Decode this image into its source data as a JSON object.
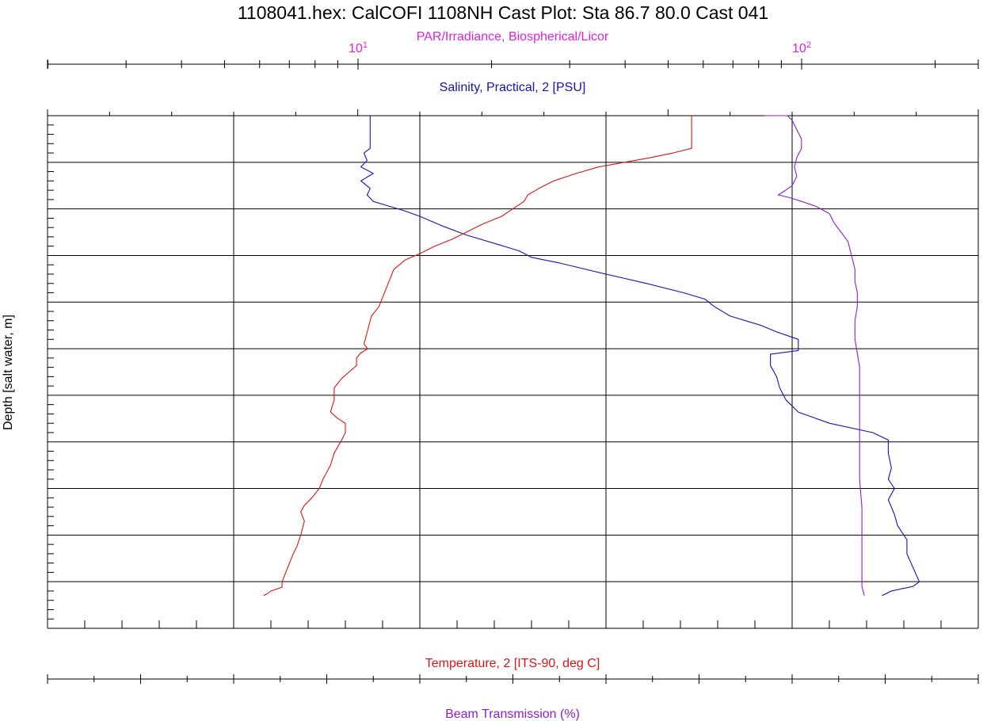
{
  "chart_data": {
    "type": "line",
    "title": "1108041.hex: CalCOFI 1108NH Cast Plot: Sta 86.7 80.0  Cast 041",
    "ylabel": "Depth [salt water, m]",
    "ylim": [
      0,
      550
    ],
    "y_ticks": [
      "0",
      "50",
      "100",
      "150",
      "200",
      "250",
      "300",
      "350",
      "400",
      "450",
      "500",
      "550"
    ],
    "grid": true,
    "axes": {
      "par": {
        "label": "PAR/Irradiance, Biospherical/Licor",
        "scale": "log",
        "tick_values": [
          10,
          100
        ],
        "tick_base": "10",
        "tick_exponents": [
          "1",
          "2"
        ],
        "color": "#e020e0"
      },
      "salinity": {
        "label": "Salinity, Practical, 2 [PSU]",
        "range": [
          32,
          35
        ],
        "ticks": [
          "32",
          "33",
          "34",
          "35"
        ],
        "color": "#1414b4"
      },
      "temperature": {
        "label": "Temperature, 2 [ITS-90, deg C]",
        "range": [
          0,
          25
        ],
        "ticks": [
          "0",
          "5",
          "10",
          "15",
          "20",
          "25"
        ],
        "color": "#dc1414"
      },
      "beam": {
        "label": "Beam Transmission (%)",
        "range": [
          70,
          90
        ],
        "ticks": [
          "72",
          "76",
          "80",
          "84",
          "88"
        ],
        "color": "#8c1ed2"
      }
    },
    "series": [
      {
        "name": "Salinity, Practical, 2 [PSU]",
        "axis": "salinity",
        "color": "#1414b4",
        "points": [
          [
            33.04,
            0
          ],
          [
            33.04,
            35
          ],
          [
            33.02,
            40
          ],
          [
            33.03,
            48
          ],
          [
            33.01,
            55
          ],
          [
            33.05,
            62
          ],
          [
            33.01,
            70
          ],
          [
            33.04,
            78
          ],
          [
            33.03,
            85
          ],
          [
            33.05,
            92
          ],
          [
            33.1,
            97
          ],
          [
            33.15,
            102
          ],
          [
            33.2,
            108
          ],
          [
            33.27,
            118
          ],
          [
            33.35,
            128
          ],
          [
            33.45,
            138
          ],
          [
            33.52,
            145
          ],
          [
            33.56,
            152
          ],
          [
            33.65,
            158
          ],
          [
            33.7,
            162
          ],
          [
            33.8,
            170
          ],
          [
            33.93,
            180
          ],
          [
            34.05,
            190
          ],
          [
            34.12,
            197
          ],
          [
            34.15,
            205
          ],
          [
            34.2,
            215
          ],
          [
            34.3,
            225
          ],
          [
            34.35,
            232
          ],
          [
            34.42,
            240
          ],
          [
            34.42,
            252
          ],
          [
            34.33,
            256
          ],
          [
            34.33,
            268
          ],
          [
            34.35,
            280
          ],
          [
            34.36,
            292
          ],
          [
            34.38,
            305
          ],
          [
            34.42,
            318
          ],
          [
            34.52,
            330
          ],
          [
            34.66,
            340
          ],
          [
            34.71,
            348
          ],
          [
            34.71,
            362
          ],
          [
            34.72,
            378
          ],
          [
            34.71,
            390
          ],
          [
            34.73,
            400
          ],
          [
            34.71,
            412
          ],
          [
            34.73,
            428
          ],
          [
            34.74,
            440
          ],
          [
            34.77,
            455
          ],
          [
            34.77,
            470
          ],
          [
            34.79,
            485
          ],
          [
            34.81,
            500
          ],
          [
            34.79,
            505
          ],
          [
            34.72,
            510
          ],
          [
            34.69,
            515
          ]
        ]
      },
      {
        "name": "Temperature, 2 [ITS-90, deg C]",
        "axis": "temperature",
        "color": "#dc1414",
        "points": [
          [
            17.3,
            0
          ],
          [
            17.3,
            35
          ],
          [
            16.8,
            40
          ],
          [
            16.2,
            45
          ],
          [
            15.5,
            50
          ],
          [
            14.8,
            55
          ],
          [
            14.2,
            62
          ],
          [
            13.6,
            70
          ],
          [
            13.2,
            78
          ],
          [
            12.9,
            85
          ],
          [
            12.8,
            92
          ],
          [
            12.5,
            100
          ],
          [
            12.2,
            108
          ],
          [
            11.7,
            116
          ],
          [
            11.3,
            124
          ],
          [
            10.9,
            132
          ],
          [
            10.4,
            140
          ],
          [
            10.0,
            148
          ],
          [
            9.6,
            155
          ],
          [
            9.3,
            165
          ],
          [
            9.2,
            175
          ],
          [
            9.1,
            185
          ],
          [
            9.0,
            195
          ],
          [
            8.9,
            205
          ],
          [
            8.7,
            215
          ],
          [
            8.6,
            230
          ],
          [
            8.5,
            245
          ],
          [
            8.6,
            250
          ],
          [
            8.4,
            255
          ],
          [
            8.3,
            260
          ],
          [
            8.3,
            268
          ],
          [
            8.1,
            275
          ],
          [
            7.9,
            282
          ],
          [
            7.7,
            292
          ],
          [
            7.7,
            305
          ],
          [
            7.6,
            318
          ],
          [
            7.8,
            325
          ],
          [
            8.0,
            330
          ],
          [
            8.0,
            340
          ],
          [
            7.9,
            348
          ],
          [
            7.7,
            362
          ],
          [
            7.6,
            375
          ],
          [
            7.4,
            390
          ],
          [
            7.3,
            400
          ],
          [
            7.1,
            410
          ],
          [
            6.9,
            418
          ],
          [
            6.8,
            425
          ],
          [
            6.9,
            435
          ],
          [
            6.8,
            450
          ],
          [
            6.7,
            462
          ],
          [
            6.6,
            470
          ],
          [
            6.5,
            480
          ],
          [
            6.4,
            490
          ],
          [
            6.3,
            500
          ],
          [
            6.3,
            506
          ],
          [
            6.0,
            510
          ],
          [
            5.9,
            513
          ],
          [
            5.8,
            515
          ]
        ]
      },
      {
        "name": "Beam Transmission (%)",
        "axis": "beam",
        "color": "#8c1ed2",
        "points": [
          [
            85.4,
            0
          ],
          [
            85.9,
            0
          ],
          [
            86.0,
            5
          ],
          [
            86.1,
            15
          ],
          [
            86.2,
            25
          ],
          [
            86.2,
            35
          ],
          [
            86.1,
            45
          ],
          [
            86.05,
            55
          ],
          [
            86.1,
            65
          ],
          [
            86.0,
            75
          ],
          [
            85.8,
            82
          ],
          [
            85.7,
            85
          ],
          [
            85.95,
            88
          ],
          [
            86.2,
            92
          ],
          [
            86.5,
            97
          ],
          [
            86.8,
            105
          ],
          [
            86.9,
            115
          ],
          [
            87.05,
            125
          ],
          [
            87.2,
            135
          ],
          [
            87.25,
            145
          ],
          [
            87.3,
            155
          ],
          [
            87.35,
            165
          ],
          [
            87.35,
            178
          ],
          [
            87.4,
            190
          ],
          [
            87.4,
            205
          ],
          [
            87.35,
            220
          ],
          [
            87.35,
            240
          ],
          [
            87.4,
            255
          ],
          [
            87.45,
            270
          ],
          [
            87.45,
            300
          ],
          [
            87.45,
            330
          ],
          [
            87.45,
            360
          ],
          [
            87.45,
            390
          ],
          [
            87.5,
            420
          ],
          [
            87.5,
            450
          ],
          [
            87.5,
            480
          ],
          [
            87.5,
            505
          ],
          [
            87.55,
            515
          ]
        ]
      }
    ]
  }
}
